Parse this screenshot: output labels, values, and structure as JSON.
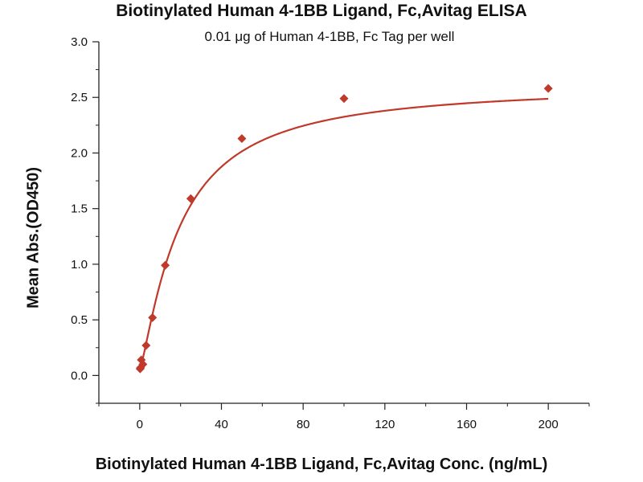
{
  "chart_data": {
    "type": "scatter",
    "title": "Biotinylated Human 4-1BB Ligand, Fc,Avitag ELISA",
    "subtitle": "0.01 μg of Human 4-1BB, Fc Tag per well",
    "xlabel": "Biotinylated Human 4-1BB Ligand, Fc,Avitag Conc. (ng/mL)",
    "ylabel": "Mean Abs.(OD450)",
    "xlim": [
      -20,
      220
    ],
    "ylim": [
      -0.25,
      3.0
    ],
    "x_ticks": [
      0,
      40,
      80,
      120,
      160,
      200
    ],
    "y_ticks": [
      0.0,
      0.5,
      1.0,
      1.5,
      2.0,
      2.5,
      3.0
    ],
    "x_tick_labels": [
      "0",
      "40",
      "80",
      "120",
      "160",
      "200"
    ],
    "y_tick_labels": [
      "0.0",
      "0.5",
      "1.0",
      "1.5",
      "2.0",
      "2.5",
      "3.0"
    ],
    "grid": false,
    "marker_color": "#c0392b",
    "series": [
      {
        "x": [
          0.2,
          0.39,
          0.78,
          1.56,
          3.125,
          6.25,
          12.5,
          25,
          50,
          100,
          200
        ],
        "y": [
          0.06,
          0.07,
          0.14,
          0.1,
          0.27,
          0.52,
          0.99,
          1.59,
          2.13,
          2.49,
          2.58
        ],
        "fit_curve": true
      }
    ]
  }
}
